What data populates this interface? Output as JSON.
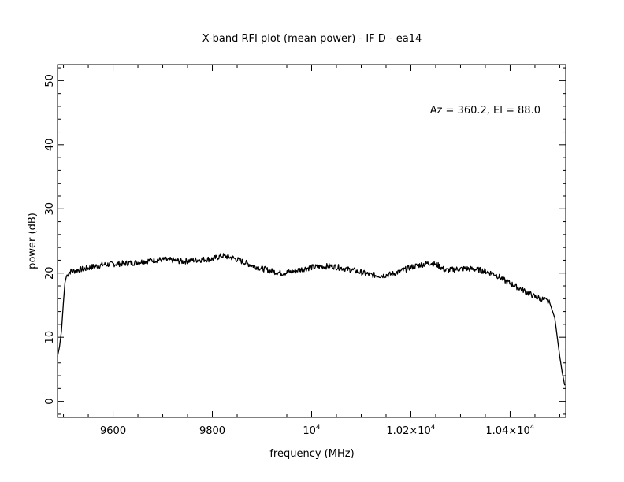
{
  "chart_data": {
    "type": "line",
    "title": "X-band RFI plot (mean power) - IF D - ea14",
    "xlabel": "frequency (MHz)",
    "ylabel": "power (dB)",
    "annotation": "Az = 360.2, El = 88.0",
    "xlim": [
      9488,
      10512
    ],
    "ylim": [
      -2.5,
      52.5
    ],
    "x_ticks": [
      {
        "value": 9600,
        "label": "9600",
        "sup": ""
      },
      {
        "value": 9800,
        "label": "9800",
        "sup": ""
      },
      {
        "value": 10000,
        "label": "10",
        "sup": "4"
      },
      {
        "value": 10200,
        "label": "1.02×10",
        "sup": "4"
      },
      {
        "value": 10400,
        "label": "1.04×10",
        "sup": "4"
      }
    ],
    "y_ticks": [
      {
        "value": 0,
        "label": "0"
      },
      {
        "value": 10,
        "label": "10"
      },
      {
        "value": 20,
        "label": "20"
      },
      {
        "value": 30,
        "label": "30"
      },
      {
        "value": 40,
        "label": "40"
      },
      {
        "value": 50,
        "label": "50"
      }
    ],
    "series": [
      {
        "x": [
          9488,
          9492,
          9496,
          9500,
          9503,
          9506,
          9510,
          9515,
          9520,
          9530,
          9545,
          9560,
          9580,
          9600,
          9620,
          9640,
          9660,
          9680,
          9700,
          9720,
          9740,
          9760,
          9780,
          9800,
          9820,
          9840,
          9860,
          9880,
          9900,
          9920,
          9940,
          9960,
          9980,
          10000,
          10020,
          10040,
          10060,
          10080,
          10100,
          10120,
          10140,
          10160,
          10180,
          10200,
          10220,
          10240,
          10255,
          10270,
          10290,
          10310,
          10330,
          10350,
          10370,
          10390,
          10410,
          10430,
          10450,
          10470,
          10480,
          10490,
          10495,
          10500,
          10505,
          10510
        ],
        "values": [
          7.0,
          8.5,
          11.0,
          15.5,
          18.5,
          19.5,
          20.0,
          20.3,
          20.3,
          20.5,
          20.7,
          21.0,
          21.3,
          21.4,
          21.5,
          21.6,
          21.8,
          22.0,
          22.1,
          22.0,
          21.8,
          22.0,
          22.1,
          22.2,
          22.7,
          22.4,
          21.8,
          21.2,
          20.7,
          20.3,
          20.0,
          20.2,
          20.6,
          20.9,
          21.0,
          21.1,
          20.8,
          20.5,
          20.1,
          19.7,
          19.6,
          19.8,
          20.3,
          20.9,
          21.3,
          21.6,
          21.2,
          20.4,
          20.6,
          20.7,
          20.6,
          20.3,
          19.8,
          18.8,
          18.0,
          17.2,
          16.3,
          15.8,
          15.3,
          13.0,
          10.0,
          7.0,
          4.5,
          2.5
        ]
      }
    ]
  }
}
